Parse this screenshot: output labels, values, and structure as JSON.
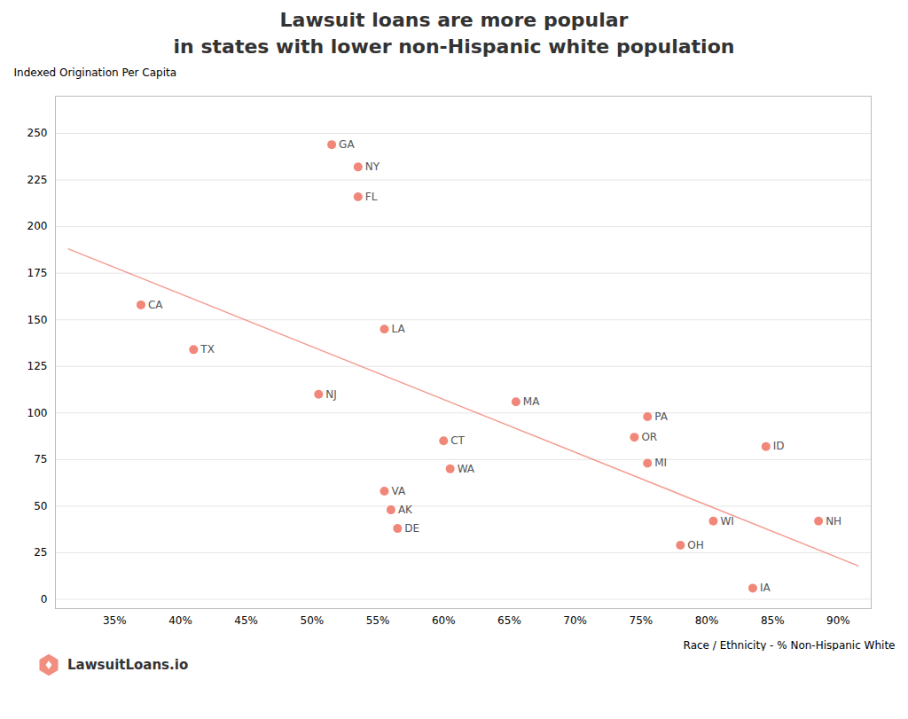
{
  "chart_data": {
    "type": "scatter",
    "title": "Lawsuit loans are more popular",
    "subtitle": "in states with lower non-Hispanic white population",
    "xlabel": "Race / Ethnicity - % Non-Hispanic White",
    "ylabel": "Indexed Origination Per Capita",
    "annotations": [
      "LawsuitLoans.io"
    ],
    "series": [
      {
        "type": "line",
        "color": "#f07a6a",
        "x": [
          0.315,
          0.915
        ],
        "values": [
          188,
          18
        ]
      },
      {
        "type": "scatter",
        "color": "#f07a6a",
        "labels": [
          "CA",
          "TX",
          "GA",
          "NY",
          "FL",
          "NJ",
          "LA",
          "CT",
          "WA",
          "MA",
          "OR",
          "PA",
          "MI",
          "VA",
          "AK",
          "DE",
          "OH",
          "WI",
          "IA",
          "ID",
          "NH"
        ],
        "x": [
          0.37,
          0.41,
          0.515,
          0.535,
          0.535,
          0.505,
          0.555,
          0.6,
          0.605,
          0.655,
          0.745,
          0.755,
          0.755,
          0.555,
          0.56,
          0.565,
          0.78,
          0.805,
          0.835,
          0.845,
          0.885
        ],
        "values": [
          158,
          134,
          244,
          232,
          216,
          110,
          145,
          85,
          70,
          106,
          87,
          98,
          73,
          58,
          48,
          38,
          29,
          42,
          6,
          82,
          42
        ]
      }
    ],
    "xlim": [
      0.305,
      0.925
    ],
    "xticks": [
      {
        "value": 0.35,
        "label": "35%"
      },
      {
        "value": 0.4,
        "label": "40%"
      },
      {
        "value": 0.45,
        "label": "45%"
      },
      {
        "value": 0.5,
        "label": "50%"
      },
      {
        "value": 0.55,
        "label": "55%"
      },
      {
        "value": 0.6,
        "label": "60%"
      },
      {
        "value": 0.65,
        "label": "65%"
      },
      {
        "value": 0.7,
        "label": "70%"
      },
      {
        "value": 0.75,
        "label": "75%"
      },
      {
        "value": 0.8,
        "label": "80%"
      },
      {
        "value": 0.85,
        "label": "85%"
      },
      {
        "value": 0.9,
        "label": "90%"
      }
    ],
    "ylim": [
      -5,
      270
    ],
    "yticks": [
      0,
      25,
      50,
      75,
      100,
      125,
      150,
      175,
      200,
      225,
      250
    ],
    "grid": "y"
  }
}
